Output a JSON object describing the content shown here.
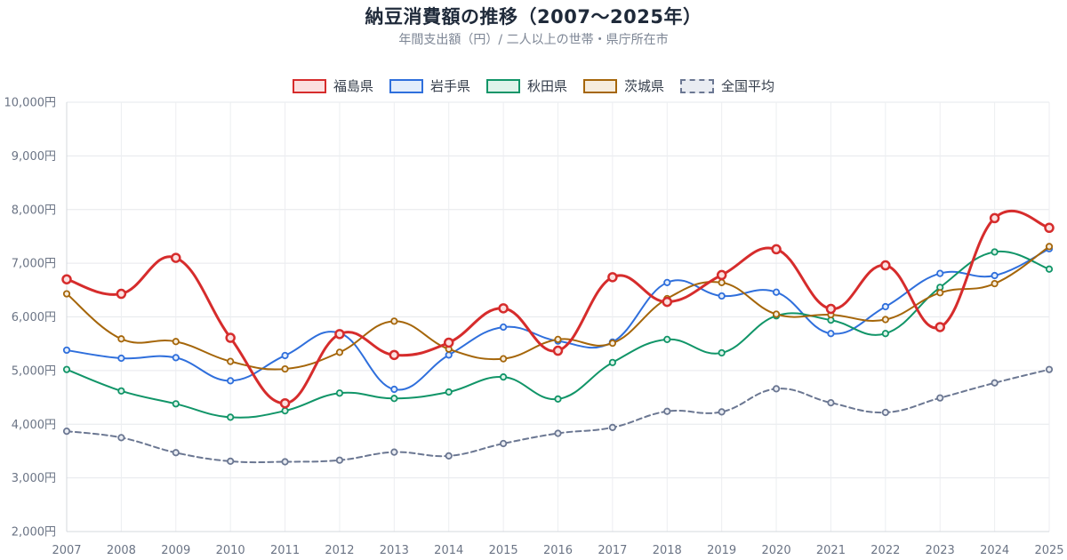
{
  "header": {
    "title": "納豆消費額の推移（2007〜2025年）",
    "subtitle": "年間支出額（円）/ 二人以上の世帯・県庁所在市"
  },
  "chart_data": {
    "type": "line",
    "title": "納豆消費額の推移（2007〜2025年）",
    "subtitle": "年間支出額（円）/ 二人以上の世帯・県庁所在市",
    "x": [
      "2007",
      "2008",
      "2009",
      "2010",
      "2011",
      "2012",
      "2013",
      "2014",
      "2015",
      "2016",
      "2017",
      "2018",
      "2019",
      "2020",
      "2021",
      "2022",
      "2023",
      "2024",
      "2025"
    ],
    "ylim": [
      2000,
      10000
    ],
    "yticks": [
      2000,
      3000,
      4000,
      5000,
      6000,
      7000,
      8000,
      9000,
      10000
    ],
    "ytick_labels": [
      "2,000円",
      "3,000円",
      "4,000円",
      "5,000円",
      "6,000円",
      "7,000円",
      "8,000円",
      "9,000円",
      "10,000円"
    ],
    "grid": true,
    "legend_position": "top-center",
    "series": [
      {
        "name": "福島県",
        "color": "#d62c2c",
        "fill": "#fbe0e0",
        "dashed": false,
        "emphasis": true,
        "values": [
          6700,
          6430,
          7100,
          5610,
          4390,
          5680,
          5290,
          5520,
          6160,
          5370,
          6740,
          6280,
          6780,
          7260,
          6150,
          6960,
          5810,
          7840,
          7660
        ]
      },
      {
        "name": "岩手県",
        "color": "#2f6fdc",
        "fill": "#e3edfb",
        "dashed": false,
        "emphasis": false,
        "values": [
          5380,
          5230,
          5240,
          4810,
          5280,
          5700,
          4650,
          5290,
          5810,
          5550,
          5530,
          6640,
          6390,
          6460,
          5690,
          6190,
          6810,
          6770,
          7270
        ]
      },
      {
        "name": "秋田県",
        "color": "#119568",
        "fill": "#dff3ea",
        "dashed": false,
        "emphasis": false,
        "values": [
          5020,
          4620,
          4380,
          4130,
          4250,
          4580,
          4480,
          4600,
          4880,
          4470,
          5150,
          5580,
          5330,
          6020,
          5940,
          5690,
          6550,
          7210,
          6890
        ]
      },
      {
        "name": "茨城県",
        "color": "#a5660a",
        "fill": "#f6ecdd",
        "dashed": false,
        "emphasis": false,
        "values": [
          6430,
          5590,
          5540,
          5170,
          5030,
          5340,
          5920,
          5400,
          5220,
          5580,
          5510,
          6340,
          6640,
          6050,
          6040,
          5950,
          6450,
          6620,
          7310
        ]
      },
      {
        "name": "全国平均",
        "color": "#6b7792",
        "fill": "#e9ecf2",
        "dashed": true,
        "emphasis": false,
        "values": [
          3870,
          3750,
          3470,
          3310,
          3300,
          3330,
          3480,
          3410,
          3640,
          3830,
          3940,
          4240,
          4230,
          4660,
          4400,
          4220,
          4490,
          4770,
          5020
        ]
      }
    ]
  }
}
